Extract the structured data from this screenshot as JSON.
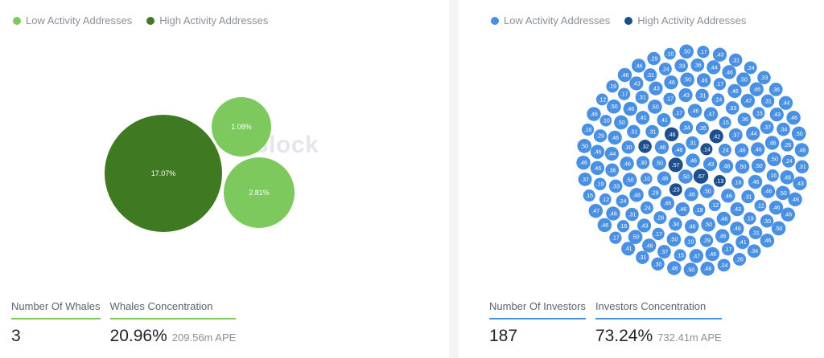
{
  "whales_panel": {
    "legend": [
      {
        "label": "Low Activity Addresses",
        "color": "#7dc95e"
      },
      {
        "label": "High Activity Addresses",
        "color": "#3f7a22"
      }
    ],
    "watermark": "Block",
    "stats": [
      {
        "label": "Number Of Whales",
        "value": "3",
        "sub": ""
      },
      {
        "label": "Whales Concentration",
        "value": "20.96%",
        "sub": "209.56m APE"
      }
    ]
  },
  "investors_panel": {
    "legend": [
      {
        "label": "Low Activity Addresses",
        "color": "#4a90e2"
      },
      {
        "label": "High Activity Addresses",
        "color": "#1d4f8f"
      }
    ],
    "stats": [
      {
        "label": "Number Of Investors",
        "value": "187",
        "sub": ""
      },
      {
        "label": "Investors Concentration",
        "value": "73.24%",
        "sub": "732.41m APE"
      }
    ]
  },
  "chart_data": [
    {
      "type": "bubble",
      "series": [
        {
          "name": "Low Activity Addresses",
          "values": [
            1.08,
            2.81
          ]
        },
        {
          "name": "High Activity Addresses",
          "values": [
            17.07
          ]
        }
      ],
      "labels": [
        "1.08%",
        "2.81%",
        "17.07%"
      ]
    },
    {
      "type": "bubble",
      "series": [
        {
          "name": "Low Activity Addresses",
          "values": [
            0.46,
            0.5,
            0.46,
            0.31,
            0.43,
            0.46,
            0.5,
            0.46,
            0.34,
            0.26,
            0.24,
            0.48,
            0.5,
            0.46,
            0.3,
            0.31,
            0.41,
            0.17,
            0.46,
            0.47,
            0.15,
            0.37,
            0.46,
            0.5,
            0.16,
            0.46,
            0.12,
            0.19,
            0.46,
            0.46,
            0.29,
            0.1,
            0.5,
            0.17,
            0.43,
            0.31,
            0.24,
            0.33,
            0.36,
            0.44
          ]
        },
        {
          "name": "High Activity Addresses",
          "values": [
            0.67,
            0.57,
            0.14,
            0.23,
            0.46,
            0.42,
            0.13,
            0.32
          ]
        }
      ]
    }
  ]
}
